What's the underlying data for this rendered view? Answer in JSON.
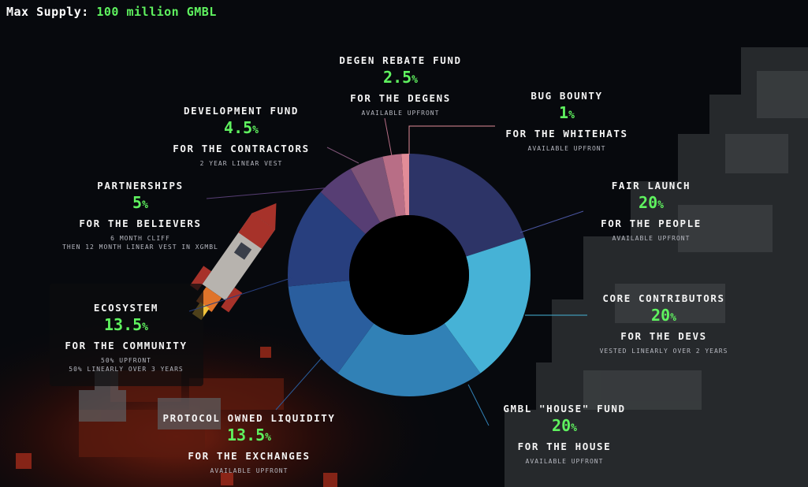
{
  "header": {
    "supply_label": "Max Supply:",
    "supply_value": "100 million GMBL"
  },
  "chart_data": {
    "type": "pie",
    "style": "donut",
    "start_angle_deg": 0,
    "direction": "clockwise",
    "slices": [
      {
        "name": "FAIR LAUNCH",
        "value": 20,
        "pct_text": "20",
        "purpose": "FOR THE PEOPLE",
        "notes": [
          "AVAILABLE UPFRONT"
        ],
        "color": "#2d3467"
      },
      {
        "name": "CORE CONTRIBUTORS",
        "value": 20,
        "pct_text": "20",
        "purpose": "FOR THE DEVS",
        "notes": [
          "VESTED LINEARLY OVER 2 YEARS"
        ],
        "color": "#46b2d6"
      },
      {
        "name": "GMBL \"HOUSE\" FUND",
        "value": 20,
        "pct_text": "20",
        "purpose": "FOR THE HOUSE",
        "notes": [
          "AVAILABLE UPFRONT"
        ],
        "color": "#3181b6"
      },
      {
        "name": "PROTOCOL OWNED LIQUIDITY",
        "value": 13.5,
        "pct_text": "13.5",
        "purpose": "FOR THE EXCHANGES",
        "notes": [
          "AVAILABLE UPFRONT"
        ],
        "color": "#2a5e9e"
      },
      {
        "name": "ECOSYSTEM",
        "value": 13.5,
        "pct_text": "13.5",
        "purpose": "FOR THE COMMUNITY",
        "notes": [
          "50% UPFRONT",
          "50% LINEARLY OVER 3 YEARS"
        ],
        "color": "#283f7e"
      },
      {
        "name": "PARTNERSHIPS",
        "value": 5,
        "pct_text": "5",
        "purpose": "FOR THE BELIEVERS",
        "notes": [
          "6 MONTH CLIFF",
          "THEN 12 MONTH LINEAR VEST IN XGMBL"
        ],
        "color": "#573e74"
      },
      {
        "name": "DEVELOPMENT FUND",
        "value": 4.5,
        "pct_text": "4.5",
        "purpose": "FOR THE CONTRACTORS",
        "notes": [
          "2 YEAR LINEAR VEST"
        ],
        "color": "#7e5477"
      },
      {
        "name": "DEGEN REBATE FUND",
        "value": 2.5,
        "pct_text": "2.5",
        "purpose": "FOR THE DEGENS",
        "notes": [
          "AVAILABLE UPFRONT"
        ],
        "color": "#b86e86"
      },
      {
        "name": "BUG BOUNTY",
        "value": 1,
        "pct_text": "1",
        "purpose": "FOR THE WHITEHATS",
        "notes": [
          "AVAILABLE UPFRONT"
        ],
        "color": "#e28c98"
      }
    ],
    "percent_symbol": "%"
  }
}
